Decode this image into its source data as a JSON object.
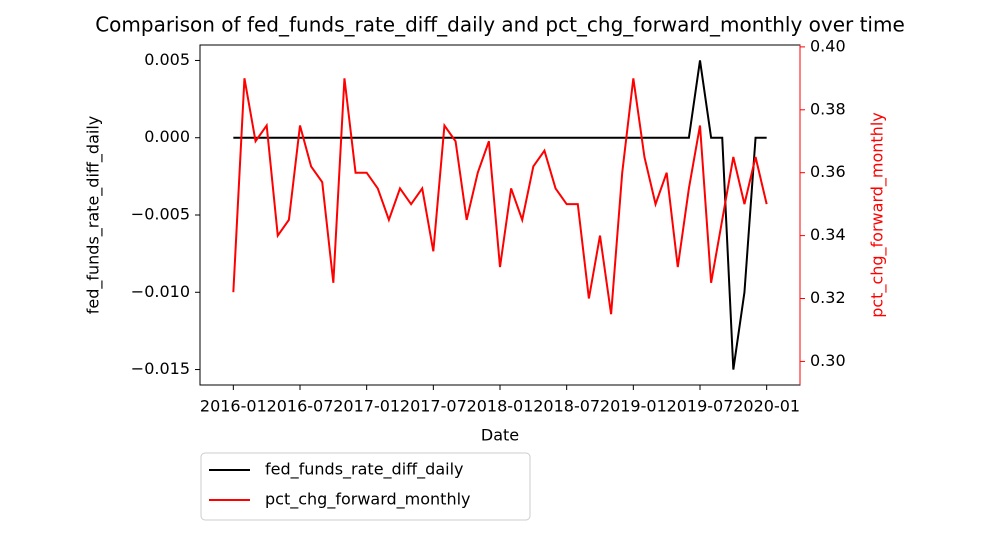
{
  "chart_data": {
    "type": "line",
    "title": "Comparison of fed_funds_rate_diff_daily and pct_chg_forward_monthly over time",
    "x_label": "Date",
    "y_label": "fed_funds_rate_diff_daily",
    "y2_label": "pct_chg_forward_monthly",
    "x": [
      "2016-01",
      "2016-02",
      "2016-03",
      "2016-04",
      "2016-05",
      "2016-06",
      "2016-07",
      "2016-08",
      "2016-09",
      "2016-10",
      "2016-11",
      "2016-12",
      "2017-01",
      "2017-02",
      "2017-03",
      "2017-04",
      "2017-05",
      "2017-06",
      "2017-07",
      "2017-08",
      "2017-09",
      "2017-10",
      "2017-11",
      "2017-12",
      "2018-01",
      "2018-02",
      "2018-03",
      "2018-04",
      "2018-05",
      "2018-06",
      "2018-07",
      "2018-08",
      "2018-09",
      "2018-10",
      "2018-11",
      "2018-12",
      "2019-01",
      "2019-02",
      "2019-03",
      "2019-04",
      "2019-05",
      "2019-06",
      "2019-07",
      "2019-08",
      "2019-09",
      "2019-10",
      "2019-11",
      "2019-12",
      "2020-01"
    ],
    "xlim": [
      "2015-10",
      "2020-04"
    ],
    "xticks": [
      "2016-01",
      "2016-07",
      "2017-01",
      "2017-07",
      "2018-01",
      "2018-07",
      "2019-01",
      "2019-07",
      "2020-01"
    ],
    "ylim": [
      -0.016,
      0.006
    ],
    "yticks": [
      -0.015,
      -0.01,
      -0.005,
      0.0,
      0.005
    ],
    "y2lim": [
      0.2925,
      0.4006
    ],
    "y2ticks": [
      0.3,
      0.32,
      0.34,
      0.36,
      0.38,
      0.4
    ],
    "y2_color": "#ff0000",
    "series": [
      {
        "name": "fed_funds_rate_diff_daily",
        "color": "#000000",
        "values": [
          0,
          0,
          0,
          0,
          0,
          0,
          0,
          0,
          0,
          0,
          0,
          0,
          0,
          0,
          0,
          0,
          0,
          0,
          0,
          0,
          0,
          0,
          0,
          0,
          0,
          0,
          0,
          0,
          0,
          0,
          0,
          0,
          0,
          0,
          0,
          0,
          0,
          0,
          0,
          0,
          0,
          0,
          0.005,
          0,
          0,
          -0.015,
          -0.01,
          0,
          0
        ]
      },
      {
        "name": "pct_chg_forward_monthly",
        "color": "#ff0000",
        "axis": "y2",
        "values": [
          0.322,
          0.39,
          0.37,
          0.375,
          0.34,
          0.345,
          0.375,
          0.362,
          0.357,
          0.325,
          0.39,
          0.36,
          0.36,
          0.355,
          0.345,
          0.355,
          0.35,
          0.355,
          0.335,
          0.375,
          0.37,
          0.345,
          0.36,
          0.37,
          0.33,
          0.355,
          0.345,
          0.362,
          0.367,
          0.355,
          0.35,
          0.35,
          0.32,
          0.34,
          0.315,
          0.36,
          0.39,
          0.365,
          0.35,
          0.36,
          0.33,
          0.355,
          0.375,
          0.325,
          0.345,
          0.365,
          0.35,
          0.365,
          0.35
        ]
      }
    ],
    "legend": "below-left"
  }
}
